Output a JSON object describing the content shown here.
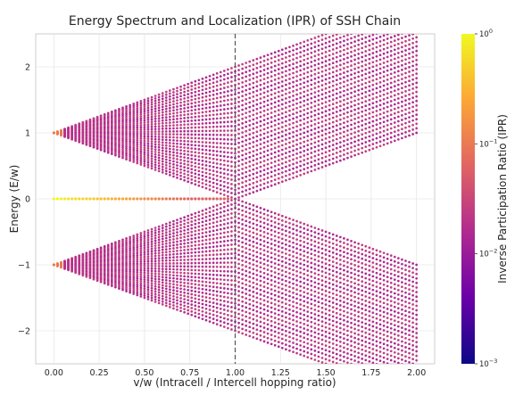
{
  "chart_data": {
    "type": "scatter",
    "title": "Energy Spectrum and Localization (IPR) of SSH Chain",
    "xlabel": "v/w (Intracell / Intercell hopping ratio)",
    "ylabel": "Energy (E/w)",
    "xlim": [
      -0.1,
      2.1
    ],
    "ylim": [
      -2.5,
      2.5
    ],
    "xticks": [
      0.0,
      0.25,
      0.5,
      0.75,
      1.0,
      1.25,
      1.5,
      1.75,
      2.0
    ],
    "xtick_labels": [
      "0.00",
      "0.25",
      "0.50",
      "0.75",
      "1.00",
      "1.25",
      "1.50",
      "1.75",
      "2.00"
    ],
    "yticks": [
      -2,
      -1,
      0,
      1,
      2
    ],
    "ytick_labels": [
      "−2",
      "−1",
      "0",
      "1",
      "2"
    ],
    "grid": true,
    "x_range": [
      0.0,
      2.0
    ],
    "x_points": 101,
    "vline": {
      "x": 1.0,
      "style": "dashed",
      "color": "#555555"
    },
    "bands": {
      "description": "bulk bands: |E| from |1 - v/w| to 1 + v/w",
      "states_per_band": 30
    },
    "edge_states": {
      "energy": 0,
      "x_range": [
        0.0,
        0.97
      ]
    },
    "colorbar": {
      "label": "Inverse Participation Ratio (IPR)",
      "scale": "log",
      "min": 0.001,
      "max": 1,
      "ticks": [
        {
          "value": 0.001,
          "base": "10",
          "exp": "−3"
        },
        {
          "value": 0.01,
          "base": "10",
          "exp": "−2"
        },
        {
          "value": 0.1,
          "base": "10",
          "exp": "−1"
        },
        {
          "value": 1,
          "base": "10",
          "exp": "0"
        }
      ],
      "colormap": "plasma"
    }
  }
}
